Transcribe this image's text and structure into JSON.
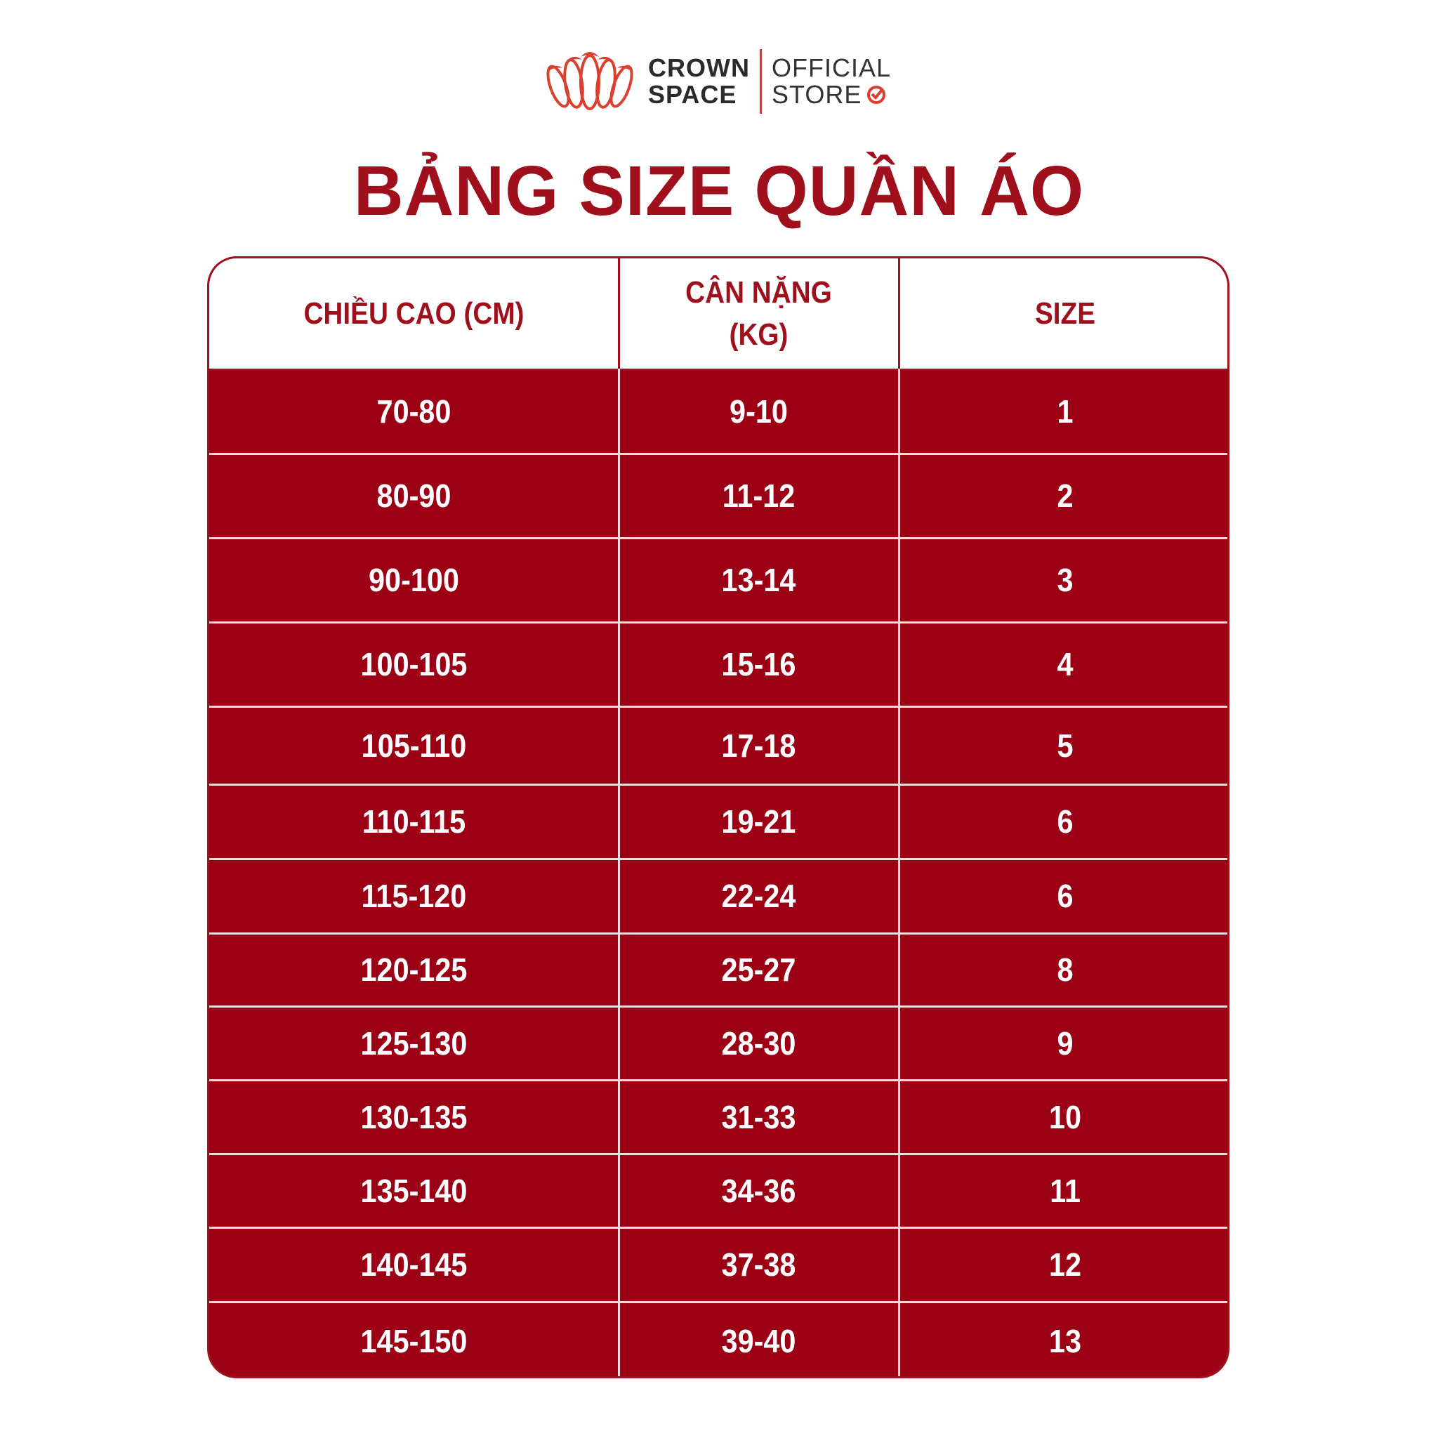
{
  "logo": {
    "brand_line1": "CROWN",
    "brand_line2": "SPACE",
    "store_line1": "OFFICIAL",
    "store_line2": "STORE",
    "icon": "check-circle-icon",
    "accent": "#d9402f"
  },
  "title": "BẢNG SIZE QUẦN ÁO",
  "colors": {
    "primary": "#9c0015",
    "header_text": "#a0101c"
  },
  "table": {
    "headers": [
      "CHIỀU CAO (CM)",
      "CÂN NẶNG\n(KG)",
      "SIZE"
    ],
    "header_weight_line1": "CÂN NẶNG",
    "header_weight_line2": "(KG)",
    "rows": [
      [
        "70-80",
        "9-10",
        "1"
      ],
      [
        "80-90",
        "11-12",
        "2"
      ],
      [
        "90-100",
        "13-14",
        "3"
      ],
      [
        "100-105",
        "15-16",
        "4"
      ],
      [
        "105-110",
        "17-18",
        "5"
      ],
      [
        "110-115",
        "19-21",
        "6"
      ],
      [
        "115-120",
        "22-24",
        "6"
      ],
      [
        "120-125",
        "25-27",
        "8"
      ],
      [
        "125-130",
        "28-30",
        "9"
      ],
      [
        "130-135",
        "31-33",
        "10"
      ],
      [
        "135-140",
        "34-36",
        "11"
      ],
      [
        "140-145",
        "37-38",
        "12"
      ],
      [
        "145-150",
        "39-40",
        "13"
      ]
    ]
  }
}
